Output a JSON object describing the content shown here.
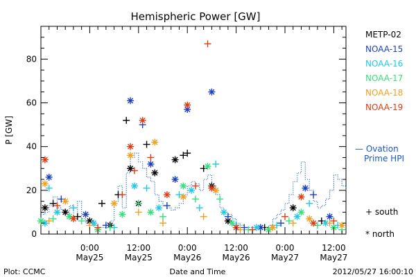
{
  "chart_data": {
    "type": "scatter",
    "title": "Hemispheric Power [GW]",
    "xlabel": "Date and Time",
    "ylabel": "P [GW]",
    "ylim": [
      0,
      95
    ],
    "yticks": [
      0,
      20,
      40,
      60,
      80
    ],
    "x_unit": "hours since 2012-05-24 12:00",
    "xlim": [
      0,
      75
    ],
    "xticks": [
      {
        "hour": 12,
        "label1": "0:00",
        "label2": "May25"
      },
      {
        "hour": 24,
        "label1": "12:00",
        "label2": "May25"
      },
      {
        "hour": 36,
        "label1": "0:00",
        "label2": "May26"
      },
      {
        "hour": 48,
        "label1": "12:00",
        "label2": "May26"
      },
      {
        "hour": 60,
        "label1": "0:00",
        "label2": "May27"
      },
      {
        "hour": 72,
        "label1": "12:00",
        "label2": "May27"
      }
    ],
    "grid": false,
    "legend": {
      "placement": "right",
      "entries": [
        {
          "name": "METP-02",
          "color": "#000000"
        },
        {
          "name": "NOAA-15",
          "color": "#1a3fbf"
        },
        {
          "name": "NOAA-16",
          "color": "#1fc8e8"
        },
        {
          "name": "NOAA-17",
          "color": "#33e07a"
        },
        {
          "name": "NOAA-18",
          "color": "#f0a020"
        },
        {
          "name": "NOAA-19",
          "color": "#e03a10"
        }
      ],
      "ovation_label_1": "— Ovation",
      "ovation_label_2": "Prime HPI",
      "marker_south": "+ south",
      "marker_north": "* north"
    },
    "ovation": [
      {
        "x": 0,
        "y": 9
      },
      {
        "x": 1,
        "y": 10
      },
      {
        "x": 2,
        "y": 13
      },
      {
        "x": 3,
        "y": 17
      },
      {
        "x": 4,
        "y": 12
      },
      {
        "x": 5,
        "y": 11
      },
      {
        "x": 6,
        "y": 9
      },
      {
        "x": 7,
        "y": 13
      },
      {
        "x": 8,
        "y": 8
      },
      {
        "x": 9,
        "y": 15
      },
      {
        "x": 10,
        "y": 7
      },
      {
        "x": 11,
        "y": 5
      },
      {
        "x": 12,
        "y": 5
      },
      {
        "x": 13,
        "y": 4
      },
      {
        "x": 14,
        "y": 3
      },
      {
        "x": 15,
        "y": 3
      },
      {
        "x": 16,
        "y": 3
      },
      {
        "x": 17,
        "y": 6
      },
      {
        "x": 18,
        "y": 15
      },
      {
        "x": 19,
        "y": 22
      },
      {
        "x": 20,
        "y": 12
      },
      {
        "x": 21,
        "y": 28
      },
      {
        "x": 22,
        "y": 35
      },
      {
        "x": 23,
        "y": 37
      },
      {
        "x": 24,
        "y": 33
      },
      {
        "x": 25,
        "y": 30
      },
      {
        "x": 26,
        "y": 26
      },
      {
        "x": 27,
        "y": 24
      },
      {
        "x": 28,
        "y": 18
      },
      {
        "x": 29,
        "y": 15
      },
      {
        "x": 30,
        "y": 13
      },
      {
        "x": 31,
        "y": 12
      },
      {
        "x": 32,
        "y": 11
      },
      {
        "x": 33,
        "y": 12
      },
      {
        "x": 34,
        "y": 14
      },
      {
        "x": 35,
        "y": 18
      },
      {
        "x": 36,
        "y": 22
      },
      {
        "x": 37,
        "y": 24
      },
      {
        "x": 38,
        "y": 23
      },
      {
        "x": 39,
        "y": 20
      },
      {
        "x": 40,
        "y": 25
      },
      {
        "x": 41,
        "y": 27
      },
      {
        "x": 42,
        "y": 22
      },
      {
        "x": 43,
        "y": 18
      },
      {
        "x": 44,
        "y": 12
      },
      {
        "x": 45,
        "y": 10
      },
      {
        "x": 46,
        "y": 9
      },
      {
        "x": 47,
        "y": 7
      },
      {
        "x": 48,
        "y": 5
      },
      {
        "x": 49,
        "y": 4
      },
      {
        "x": 50,
        "y": 3
      },
      {
        "x": 51,
        "y": 3
      },
      {
        "x": 52,
        "y": 3
      },
      {
        "x": 53,
        "y": 3
      },
      {
        "x": 54,
        "y": 3
      },
      {
        "x": 55,
        "y": 3
      },
      {
        "x": 56,
        "y": 4
      },
      {
        "x": 57,
        "y": 7
      },
      {
        "x": 58,
        "y": 9
      },
      {
        "x": 59,
        "y": 11
      },
      {
        "x": 60,
        "y": 14
      },
      {
        "x": 61,
        "y": 18
      },
      {
        "x": 62,
        "y": 24
      },
      {
        "x": 63,
        "y": 28
      },
      {
        "x": 64,
        "y": 33
      },
      {
        "x": 65,
        "y": 25
      },
      {
        "x": 66,
        "y": 20
      },
      {
        "x": 67,
        "y": 15
      },
      {
        "x": 68,
        "y": 12
      },
      {
        "x": 69,
        "y": 13
      },
      {
        "x": 70,
        "y": 16
      },
      {
        "x": 71,
        "y": 20
      },
      {
        "x": 72,
        "y": 27
      },
      {
        "x": 73,
        "y": 25
      },
      {
        "x": 74,
        "y": 22
      },
      {
        "x": 75,
        "y": 20
      }
    ],
    "series": [
      {
        "name": "METP-02",
        "color": "#000000",
        "points": [
          {
            "x": 1,
            "y": 12,
            "m": "*"
          },
          {
            "x": 3,
            "y": 14,
            "m": "+"
          },
          {
            "x": 6,
            "y": 10,
            "m": "*"
          },
          {
            "x": 9,
            "y": 8,
            "m": "+"
          },
          {
            "x": 12,
            "y": 6,
            "m": "*"
          },
          {
            "x": 15,
            "y": 14,
            "m": "+"
          },
          {
            "x": 17,
            "y": 4,
            "m": "*"
          },
          {
            "x": 19,
            "y": 18,
            "m": "+"
          },
          {
            "x": 21,
            "y": 52,
            "m": "+"
          },
          {
            "x": 22,
            "y": 30,
            "m": "*"
          },
          {
            "x": 24,
            "y": 14,
            "m": "*"
          },
          {
            "x": 26,
            "y": 41,
            "m": "+"
          },
          {
            "x": 28,
            "y": 28,
            "m": "*"
          },
          {
            "x": 33,
            "y": 34,
            "m": "*"
          },
          {
            "x": 35,
            "y": 36,
            "m": "+"
          },
          {
            "x": 36,
            "y": 37,
            "m": "+"
          },
          {
            "x": 40,
            "y": 30,
            "m": "+"
          },
          {
            "x": 42,
            "y": 22,
            "m": "*"
          },
          {
            "x": 46,
            "y": 6,
            "m": "*"
          },
          {
            "x": 55,
            "y": 3,
            "m": "+"
          },
          {
            "x": 62,
            "y": 12,
            "m": "*"
          },
          {
            "x": 69,
            "y": 6,
            "m": "+"
          }
        ]
      },
      {
        "name": "NOAA-15",
        "color": "#1a3fbf",
        "points": [
          {
            "x": 2,
            "y": 26,
            "m": "*"
          },
          {
            "x": 5,
            "y": 16,
            "m": "+"
          },
          {
            "x": 11,
            "y": 9,
            "m": "*"
          },
          {
            "x": 16,
            "y": 4,
            "m": "+"
          },
          {
            "x": 22,
            "y": 61,
            "m": "*"
          },
          {
            "x": 25,
            "y": 50,
            "m": "+"
          },
          {
            "x": 27,
            "y": 32,
            "m": "*"
          },
          {
            "x": 31,
            "y": 13,
            "m": "+"
          },
          {
            "x": 33,
            "y": 25,
            "m": "*"
          },
          {
            "x": 36,
            "y": 57,
            "m": "*"
          },
          {
            "x": 42,
            "y": 65,
            "m": "*"
          },
          {
            "x": 46,
            "y": 8,
            "m": "+"
          },
          {
            "x": 50,
            "y": 3,
            "m": "+"
          },
          {
            "x": 54,
            "y": 3,
            "m": "*"
          },
          {
            "x": 59,
            "y": 5,
            "m": "+"
          },
          {
            "x": 65,
            "y": 21,
            "m": "*"
          },
          {
            "x": 67,
            "y": 18,
            "m": "+"
          },
          {
            "x": 71,
            "y": 8,
            "m": "*"
          }
        ]
      },
      {
        "name": "NOAA-16",
        "color": "#1fc8e8",
        "points": [
          {
            "x": 1,
            "y": 5,
            "m": "*"
          },
          {
            "x": 2,
            "y": 21,
            "m": "+"
          },
          {
            "x": 4,
            "y": 10,
            "m": "*"
          },
          {
            "x": 8,
            "y": 12,
            "m": "+"
          },
          {
            "x": 13,
            "y": 5,
            "m": "*"
          },
          {
            "x": 18,
            "y": 3,
            "m": "+"
          },
          {
            "x": 23,
            "y": 22,
            "m": "*"
          },
          {
            "x": 26,
            "y": 21,
            "m": "+"
          },
          {
            "x": 29,
            "y": 12,
            "m": "*"
          },
          {
            "x": 34,
            "y": 18,
            "m": "+"
          },
          {
            "x": 37,
            "y": 20,
            "m": "*"
          },
          {
            "x": 39,
            "y": 12,
            "m": "+"
          },
          {
            "x": 43,
            "y": 32,
            "m": "+"
          },
          {
            "x": 45,
            "y": 10,
            "m": "*"
          },
          {
            "x": 48,
            "y": 4,
            "m": "+"
          },
          {
            "x": 53,
            "y": 3,
            "m": "*"
          },
          {
            "x": 58,
            "y": 4,
            "m": "+"
          },
          {
            "x": 63,
            "y": 8,
            "m": "*"
          },
          {
            "x": 66,
            "y": 14,
            "m": "+"
          },
          {
            "x": 70,
            "y": 5,
            "m": "*"
          },
          {
            "x": 73,
            "y": 4,
            "m": "+"
          }
        ]
      },
      {
        "name": "NOAA-17",
        "color": "#33e07a",
        "points": [
          {
            "x": 0,
            "y": 6,
            "m": "*"
          },
          {
            "x": 3,
            "y": 7,
            "m": "+"
          },
          {
            "x": 7,
            "y": 8,
            "m": "*"
          },
          {
            "x": 10,
            "y": 6,
            "m": "+"
          },
          {
            "x": 14,
            "y": 2,
            "m": "*"
          },
          {
            "x": 17,
            "y": 3,
            "m": "+"
          },
          {
            "x": 20,
            "y": 9,
            "m": "*"
          },
          {
            "x": 24,
            "y": 14,
            "m": "+"
          },
          {
            "x": 27,
            "y": 10,
            "m": "*"
          },
          {
            "x": 30,
            "y": 8,
            "m": "+"
          },
          {
            "x": 35,
            "y": 22,
            "m": "*"
          },
          {
            "x": 38,
            "y": 16,
            "m": "+"
          },
          {
            "x": 41,
            "y": 31,
            "m": "*"
          },
          {
            "x": 44,
            "y": 16,
            "m": "+"
          },
          {
            "x": 47,
            "y": 5,
            "m": "*"
          },
          {
            "x": 51,
            "y": 2,
            "m": "+"
          },
          {
            "x": 56,
            "y": 2,
            "m": "*"
          },
          {
            "x": 61,
            "y": 6,
            "m": "+"
          },
          {
            "x": 64,
            "y": 10,
            "m": "*"
          },
          {
            "x": 68,
            "y": 4,
            "m": "+"
          },
          {
            "x": 72,
            "y": 3,
            "m": "*"
          },
          {
            "x": 74,
            "y": 2,
            "m": "+"
          }
        ]
      },
      {
        "name": "NOAA-18",
        "color": "#f0a020",
        "points": [
          {
            "x": 1,
            "y": 23,
            "m": "*"
          },
          {
            "x": 2,
            "y": 6,
            "m": "+"
          },
          {
            "x": 6,
            "y": 15,
            "m": "*"
          },
          {
            "x": 12,
            "y": 4,
            "m": "+"
          },
          {
            "x": 18,
            "y": 14,
            "m": "*"
          },
          {
            "x": 22,
            "y": 36,
            "m": "*"
          },
          {
            "x": 24,
            "y": 10,
            "m": "+"
          },
          {
            "x": 28,
            "y": 42,
            "m": "*"
          },
          {
            "x": 30,
            "y": 5,
            "m": "+"
          },
          {
            "x": 35,
            "y": 17,
            "m": "*"
          },
          {
            "x": 40,
            "y": 8,
            "m": "+"
          },
          {
            "x": 43,
            "y": 20,
            "m": "*"
          },
          {
            "x": 49,
            "y": 2,
            "m": "+"
          },
          {
            "x": 57,
            "y": 3,
            "m": "*"
          },
          {
            "x": 62,
            "y": 5,
            "m": "+"
          },
          {
            "x": 66,
            "y": 7,
            "m": "*"
          },
          {
            "x": 71,
            "y": 5,
            "m": "+"
          },
          {
            "x": 74,
            "y": 4,
            "m": "*"
          }
        ]
      },
      {
        "name": "NOAA-19",
        "color": "#e03a10",
        "points": [
          {
            "x": 1,
            "y": 34,
            "m": "*"
          },
          {
            "x": 4,
            "y": 13,
            "m": "+"
          },
          {
            "x": 8,
            "y": 7,
            "m": "*"
          },
          {
            "x": 14,
            "y": 3,
            "m": "+"
          },
          {
            "x": 20,
            "y": 18,
            "m": "+"
          },
          {
            "x": 22,
            "y": 40,
            "m": "*"
          },
          {
            "x": 23,
            "y": 29,
            "m": "+"
          },
          {
            "x": 25,
            "y": 52,
            "m": "*"
          },
          {
            "x": 27,
            "y": 35,
            "m": "+"
          },
          {
            "x": 31,
            "y": 18,
            "m": "*"
          },
          {
            "x": 36,
            "y": 59,
            "m": "*"
          },
          {
            "x": 38,
            "y": 22,
            "m": "+"
          },
          {
            "x": 41,
            "y": 87,
            "m": "+"
          },
          {
            "x": 42,
            "y": 21,
            "m": "*"
          },
          {
            "x": 48,
            "y": 3,
            "m": "*"
          },
          {
            "x": 52,
            "y": 2,
            "m": "+"
          },
          {
            "x": 60,
            "y": 8,
            "m": "+"
          },
          {
            "x": 64,
            "y": 17,
            "m": "*"
          },
          {
            "x": 67,
            "y": 5,
            "m": "*"
          },
          {
            "x": 72,
            "y": 6,
            "m": "+"
          }
        ]
      }
    ]
  },
  "footer": {
    "left": "Plot: CCMC",
    "center": "Date and Time",
    "right": "2012/05/27 16:00:10"
  }
}
